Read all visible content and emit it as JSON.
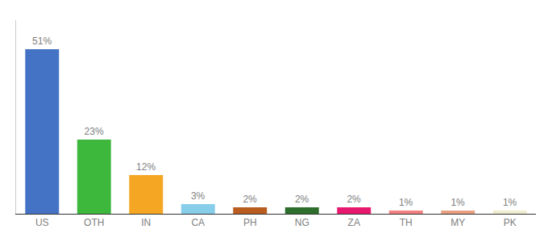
{
  "chart_data": {
    "type": "bar",
    "categories": [
      "US",
      "OTH",
      "IN",
      "CA",
      "PH",
      "NG",
      "ZA",
      "TH",
      "MY",
      "PK"
    ],
    "values": [
      51,
      23,
      12,
      3,
      2,
      2,
      2,
      1,
      1,
      1
    ],
    "value_labels": [
      "51%",
      "23%",
      "12%",
      "3%",
      "2%",
      "2%",
      "2%",
      "1%",
      "1%",
      "1%"
    ],
    "colors": [
      "#4472c4",
      "#3db83d",
      "#f5a623",
      "#87ceeb",
      "#b85c20",
      "#2d6e2d",
      "#e8186e",
      "#f48080",
      "#e8a080",
      "#f0ecd0"
    ],
    "ylim": [
      0,
      60
    ],
    "data_labels": true,
    "tick_labels": "x",
    "grid": false
  }
}
